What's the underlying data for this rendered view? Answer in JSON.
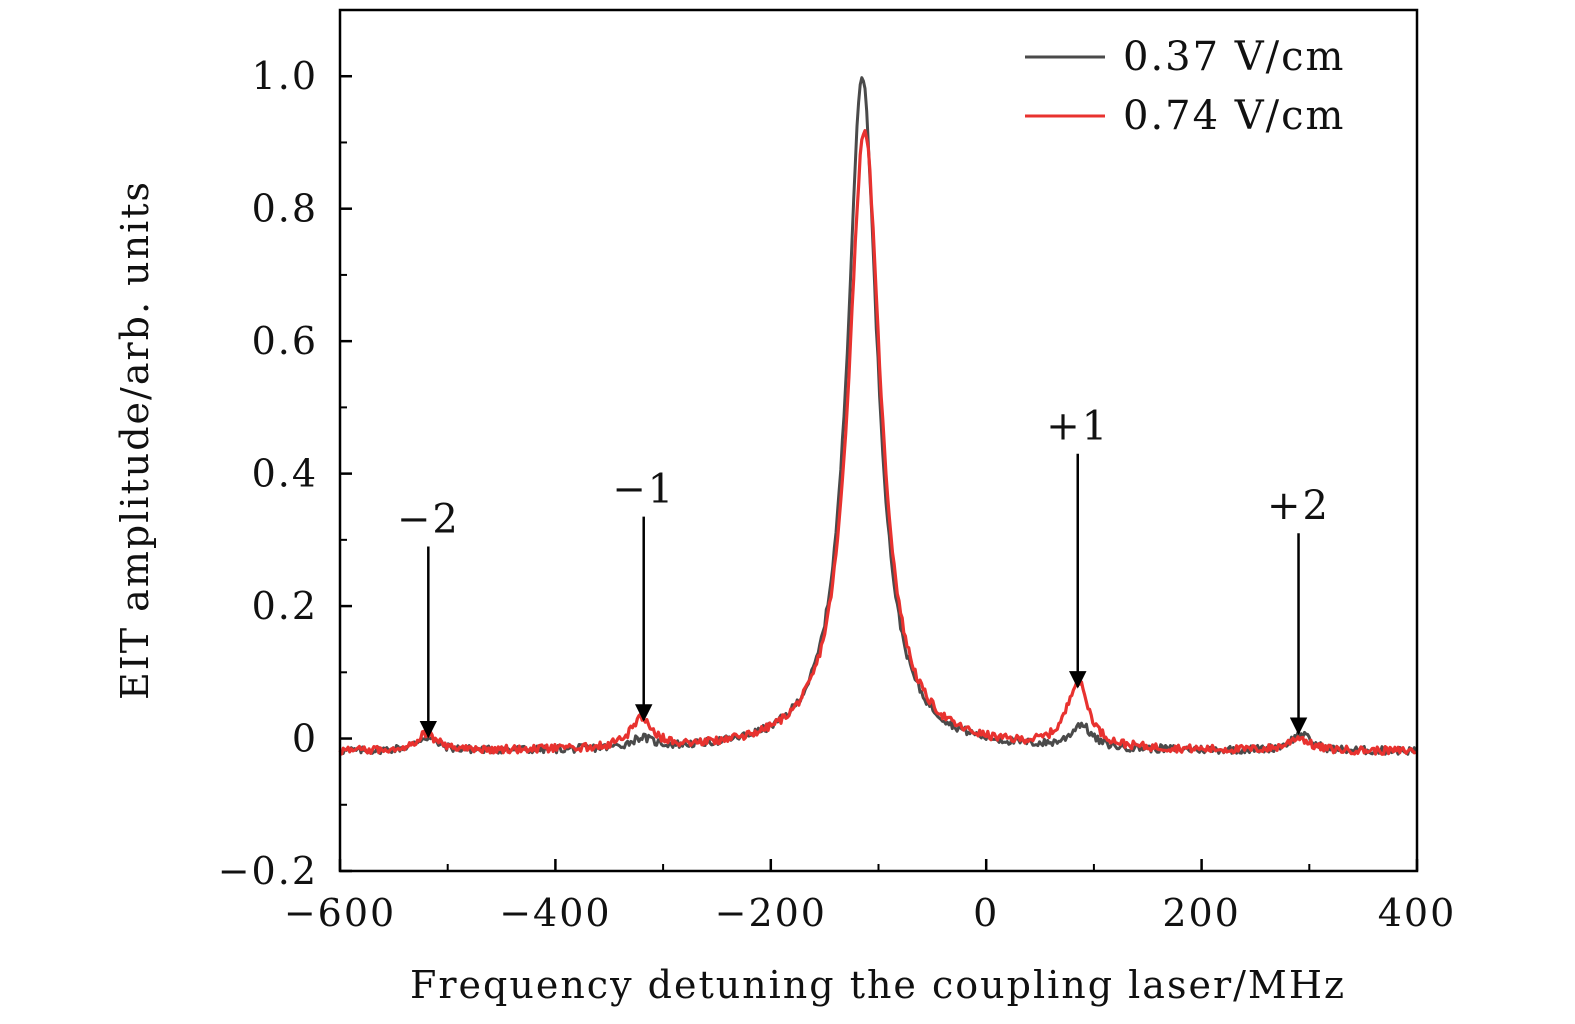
{
  "chart_data": {
    "type": "line",
    "title": "",
    "xlabel": "Frequency detuning the coupling laser/MHz",
    "ylabel": "EIT amplitude/arb. units",
    "xlim": [
      -600,
      400
    ],
    "ylim": [
      -0.2,
      1.1
    ],
    "xticks": [
      -600,
      -400,
      -200,
      0,
      200,
      400
    ],
    "xtick_labels": [
      "−600",
      "−400",
      "−200",
      "0",
      "200",
      "400"
    ],
    "yticks": [
      -0.2,
      0,
      0.2,
      0.4,
      0.6,
      0.8,
      1.0
    ],
    "ytick_labels": [
      "−0.2",
      "0",
      "0.2",
      "0.4",
      "0.6",
      "0.8",
      "1.0"
    ],
    "grid": false,
    "legend_position": "top-right",
    "series": [
      {
        "name": "0.37 V/cm",
        "color": "#4a4a4a",
        "baseline": -0.02,
        "noise": 0.006,
        "peaks": [
          {
            "center": -115,
            "amplitude": 1.02,
            "width": 17
          },
          {
            "center": -520,
            "amplitude": 0.02,
            "width": 12
          },
          {
            "center": -320,
            "amplitude": 0.015,
            "width": 12
          },
          {
            "center": 88,
            "amplitude": 0.035,
            "width": 11
          },
          {
            "center": 292,
            "amplitude": 0.025,
            "width": 11
          }
        ]
      },
      {
        "name": "0.74 V/cm",
        "color": "#e8322f",
        "baseline": -0.02,
        "noise": 0.006,
        "peaks": [
          {
            "center": -113,
            "amplitude": 0.94,
            "width": 18
          },
          {
            "center": -520,
            "amplitude": 0.025,
            "width": 12
          },
          {
            "center": -320,
            "amplitude": 0.045,
            "width": 12
          },
          {
            "center": 85,
            "amplitude": 0.1,
            "width": 12
          },
          {
            "center": 290,
            "amplitude": 0.02,
            "width": 11
          }
        ]
      }
    ],
    "annotations": [
      {
        "label": "−2",
        "x": -518,
        "y_tip": 0.0,
        "y_tail": 0.29
      },
      {
        "label": "−1",
        "x": -318,
        "y_tip": 0.025,
        "y_tail": 0.335
      },
      {
        "label": "+1",
        "x": 85,
        "y_tip": 0.075,
        "y_tail": 0.43
      },
      {
        "label": "+2",
        "x": 290,
        "y_tip": 0.005,
        "y_tail": 0.31
      }
    ]
  }
}
